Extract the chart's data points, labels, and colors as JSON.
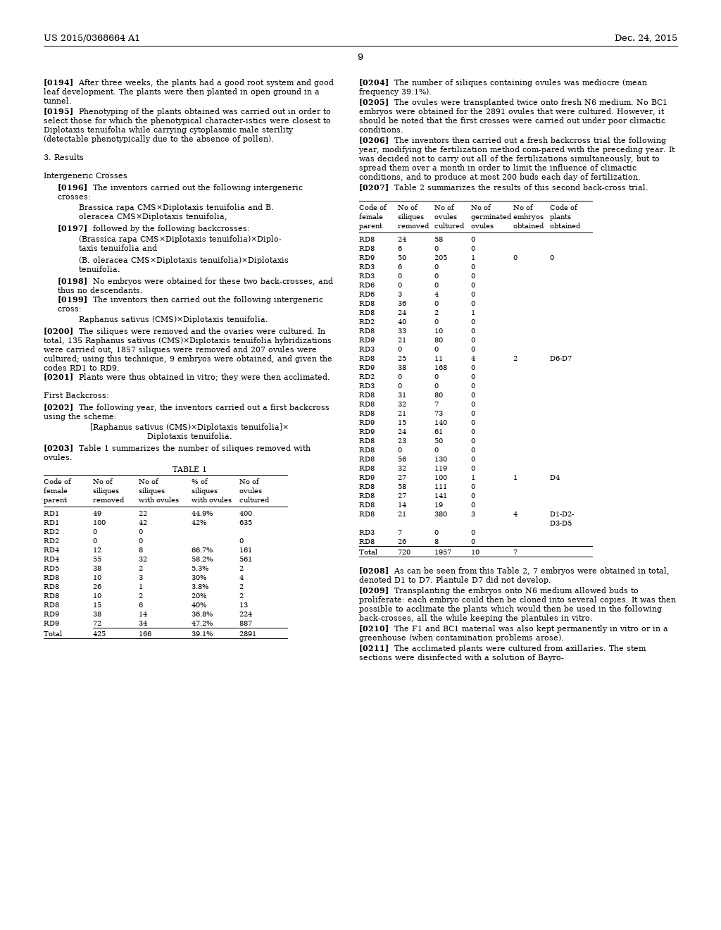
{
  "page_header_left": "US 2015/0368664 A1",
  "page_header_right": "Dec. 24, 2015",
  "page_number": "9",
  "background_color": "#ffffff",
  "table1": {
    "headers": [
      "Code of\nfemale\nparent",
      "No of\nsiliques\nremoved",
      "No of\nsiliques\nwith ovules",
      "% of\nsiliques\nwith ovules",
      "No of\novules\ncultured"
    ],
    "rows": [
      [
        "RD1",
        "49",
        "22",
        "44.9%",
        "400"
      ],
      [
        "RD1",
        "100",
        "42",
        "42%",
        "635"
      ],
      [
        "RD2",
        "0",
        "0",
        "",
        ""
      ],
      [
        "RD2",
        "0",
        "0",
        "",
        "0"
      ],
      [
        "RD4",
        "12",
        "8",
        "66.7%",
        "161"
      ],
      [
        "RD4",
        "55",
        "32",
        "58.2%",
        "561"
      ],
      [
        "RD5",
        "38",
        "2",
        "5.3%",
        "2"
      ],
      [
        "RD8",
        "10",
        "3",
        "30%",
        "4"
      ],
      [
        "RD8",
        "26",
        "1",
        "3.8%",
        "2"
      ],
      [
        "RD8",
        "10",
        "2",
        "20%",
        "2"
      ],
      [
        "RD8",
        "15",
        "6",
        "40%",
        "13"
      ],
      [
        "RD9",
        "38",
        "14",
        "36.8%",
        "224"
      ],
      [
        "RD9",
        "72",
        "34",
        "47.2%",
        "887"
      ]
    ],
    "total": [
      "Total",
      "425",
      "166",
      "39.1%",
      "2891"
    ]
  },
  "table2": {
    "headers": [
      "Code of\nfemale\nparent",
      "No of\nsiliques\nremoved",
      "No of\novules\ncultured",
      "No of\ngerminated\novules",
      "No of\nembryos\nobtained",
      "Code of\nplants\nobtained"
    ],
    "rows": [
      [
        "RD8",
        "24",
        "58",
        "0",
        "",
        ""
      ],
      [
        "RD8",
        "6",
        "0",
        "0",
        "",
        ""
      ],
      [
        "RD9",
        "50",
        "205",
        "1",
        "0",
        "0"
      ],
      [
        "RD3",
        "6",
        "0",
        "0",
        "",
        ""
      ],
      [
        "RD3",
        "0",
        "0",
        "0",
        "",
        ""
      ],
      [
        "RD6",
        "0",
        "0",
        "0",
        "",
        ""
      ],
      [
        "RD6",
        "3",
        "4",
        "0",
        "",
        ""
      ],
      [
        "RD8",
        "36",
        "0",
        "0",
        "",
        ""
      ],
      [
        "RD8",
        "24",
        "2",
        "1",
        "",
        ""
      ],
      [
        "RD2",
        "40",
        "0",
        "0",
        "",
        ""
      ],
      [
        "RD8",
        "33",
        "10",
        "0",
        "",
        ""
      ],
      [
        "RD9",
        "21",
        "80",
        "0",
        "",
        ""
      ],
      [
        "RD3",
        "0",
        "0",
        "0",
        "",
        ""
      ],
      [
        "RD8",
        "25",
        "11",
        "4",
        "2",
        "D6-D7"
      ],
      [
        "RD9",
        "38",
        "168",
        "0",
        "",
        ""
      ],
      [
        "RD2",
        "0",
        "0",
        "0",
        "",
        ""
      ],
      [
        "RD3",
        "0",
        "0",
        "0",
        "",
        ""
      ],
      [
        "RD8",
        "31",
        "80",
        "0",
        "",
        ""
      ],
      [
        "RD8",
        "32",
        "7",
        "0",
        "",
        ""
      ],
      [
        "RD8",
        "21",
        "73",
        "0",
        "",
        ""
      ],
      [
        "RD9",
        "15",
        "140",
        "0",
        "",
        ""
      ],
      [
        "RD9",
        "24",
        "61",
        "0",
        "",
        ""
      ],
      [
        "RD8",
        "23",
        "50",
        "0",
        "",
        ""
      ],
      [
        "RD8",
        "0",
        "0",
        "0",
        "",
        ""
      ],
      [
        "RD8",
        "56",
        "130",
        "0",
        "",
        ""
      ],
      [
        "RD8",
        "32",
        "119",
        "0",
        "",
        ""
      ],
      [
        "RD9",
        "27",
        "100",
        "1",
        "1",
        "D4"
      ],
      [
        "RD8",
        "58",
        "111",
        "0",
        "",
        ""
      ],
      [
        "RD8",
        "27",
        "141",
        "0",
        "",
        ""
      ],
      [
        "RD8",
        "14",
        "19",
        "0",
        "",
        ""
      ],
      [
        "RD8",
        "21",
        "380",
        "3",
        "4",
        "D1-D2-\nD3-D5"
      ],
      [
        "RD3",
        "7",
        "0",
        "0",
        "",
        ""
      ],
      [
        "RD8",
        "26",
        "8",
        "0",
        "",
        ""
      ]
    ],
    "total": [
      "Total",
      "720",
      "1957",
      "10",
      "7",
      ""
    ]
  }
}
